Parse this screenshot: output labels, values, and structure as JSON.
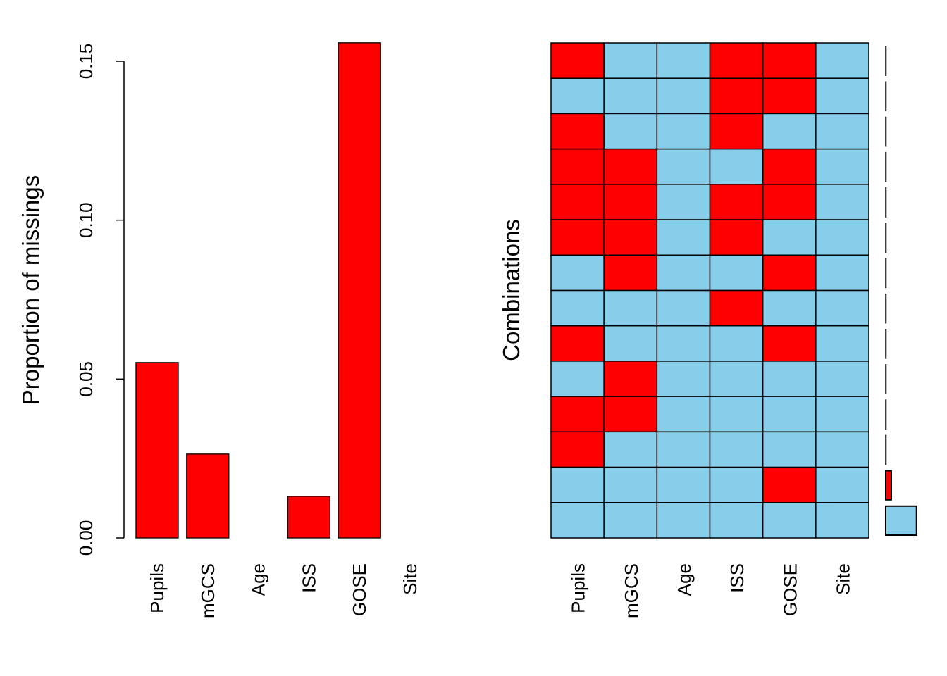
{
  "chart_data": [
    {
      "type": "bar",
      "xlabel": "",
      "ylabel": "Proportion of missings",
      "categories": [
        "Pupils",
        "mGCS",
        "Age",
        "ISS",
        "GOSE",
        "Site"
      ],
      "values": [
        0.0552,
        0.0264,
        0.0,
        0.0131,
        0.1558,
        0.0
      ],
      "ylim": [
        0,
        0.156
      ],
      "yticks": [
        "0.00",
        "0.05",
        "0.10",
        "0.15"
      ],
      "grid": false,
      "colors": {
        "bar": "#FF0000"
      }
    },
    {
      "type": "heatmap",
      "ylabel": "Combinations",
      "variables": [
        "Pupils",
        "mGCS",
        "Age",
        "ISS",
        "GOSE",
        "Site"
      ],
      "combinations": [
        [
          1,
          0,
          0,
          1,
          1,
          0
        ],
        [
          0,
          0,
          0,
          1,
          1,
          0
        ],
        [
          1,
          0,
          0,
          1,
          0,
          0
        ],
        [
          1,
          1,
          0,
          0,
          1,
          0
        ],
        [
          1,
          1,
          0,
          1,
          1,
          0
        ],
        [
          1,
          1,
          0,
          1,
          0,
          0
        ],
        [
          0,
          1,
          0,
          0,
          1,
          0
        ],
        [
          0,
          0,
          0,
          1,
          0,
          0
        ],
        [
          1,
          0,
          0,
          0,
          1,
          0
        ],
        [
          0,
          1,
          0,
          0,
          0,
          0
        ],
        [
          1,
          1,
          0,
          0,
          0,
          0
        ],
        [
          1,
          0,
          0,
          0,
          0,
          0
        ],
        [
          0,
          0,
          0,
          0,
          1,
          0
        ],
        [
          0,
          0,
          0,
          0,
          0,
          0
        ]
      ],
      "combination_proportions": [
        0.001,
        0.001,
        0.001,
        0.001,
        0.001,
        0.001,
        0.001,
        0.001,
        0.001,
        0.001,
        0.003,
        0.003,
        0.147,
        0.81
      ],
      "colors": {
        "missing": "#FF0000",
        "observed": "#87CEEB"
      }
    }
  ]
}
